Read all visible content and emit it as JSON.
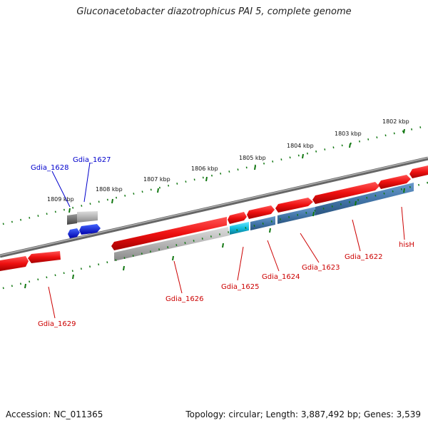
{
  "title": "Gluconacetobacter diazotrophicus PAI 5, complete genome",
  "footer": {
    "accession_label": "Accession: NC_011365",
    "topology_label": "Topology: circular; Length: 3,887,492 bp; Genes: 3,539"
  },
  "scale_labels": [
    "1802 kbp",
    "1803 kbp",
    "1804 kbp",
    "1805 kbp",
    "1806 kbp",
    "1807 kbp",
    "1808 kbp",
    "1809 kbp"
  ],
  "genes": [
    {
      "id": "g1628",
      "label": "Gdia_1628",
      "color": "#0000cc"
    },
    {
      "id": "g1627",
      "label": "Gdia_1627",
      "color": "#0000cc"
    },
    {
      "id": "g1629",
      "label": "Gdia_1629",
      "color": "#cc0000"
    },
    {
      "id": "g1626",
      "label": "Gdia_1626",
      "color": "#cc0000"
    },
    {
      "id": "g1625",
      "label": "Gdia_1625",
      "color": "#cc0000"
    },
    {
      "id": "g1624",
      "label": "Gdia_1624",
      "color": "#cc0000"
    },
    {
      "id": "g1623",
      "label": "Gdia_1623",
      "color": "#cc0000"
    },
    {
      "id": "g1622",
      "label": "Gdia_1622",
      "color": "#cc0000"
    },
    {
      "id": "hisH",
      "label": "hisH",
      "color": "#cc0000"
    }
  ],
  "colors": {
    "forward_cds": "#ee1111",
    "reverse_cds": "#4477aa",
    "pseudo": "#aaaaaa",
    "rna": "#2266ee",
    "tick": "#117711",
    "backbone": "#777777"
  }
}
